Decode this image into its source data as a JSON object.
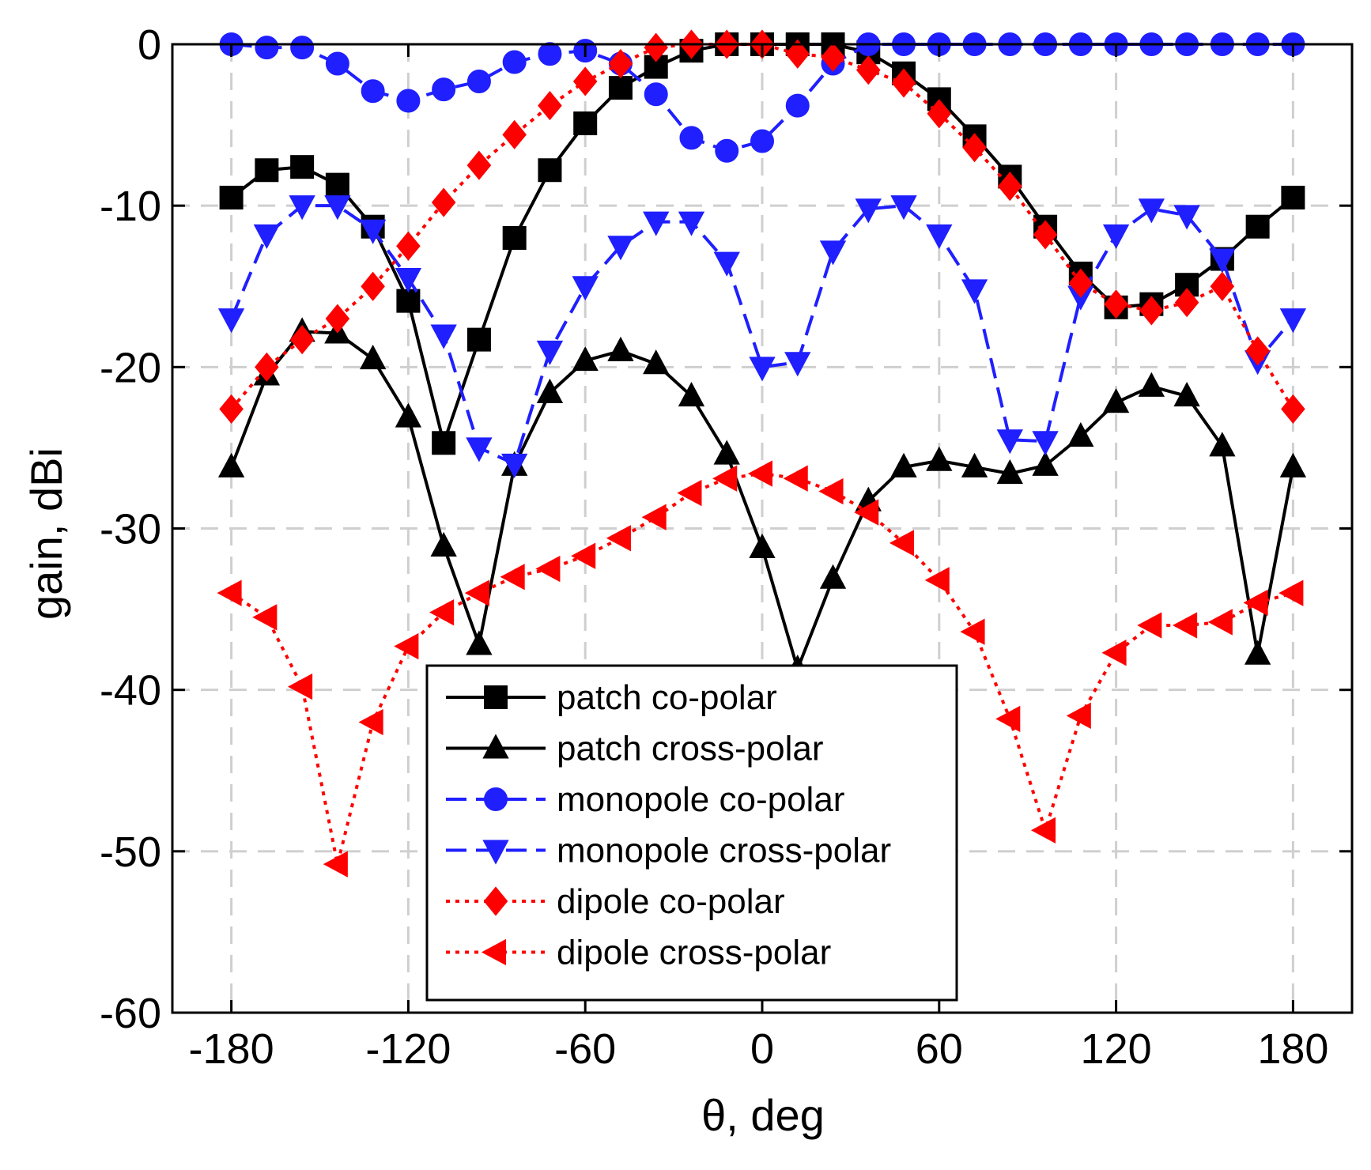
{
  "chart_data": {
    "type": "line",
    "title": "",
    "xlabel": "θ, deg",
    "ylabel": "gain, dBi",
    "xlim": [
      -200,
      200
    ],
    "ylim": [
      -60,
      0
    ],
    "xticks": [
      -180,
      -120,
      -60,
      0,
      60,
      120,
      180
    ],
    "yticks": [
      0,
      -10,
      -20,
      -30,
      -40,
      -50,
      -60
    ],
    "xtick_labels": [
      "-180",
      "-120",
      "-60",
      "0",
      "60",
      "120",
      "180"
    ],
    "ytick_labels": [
      "0",
      "-10",
      "-20",
      "-30",
      "-40",
      "-50",
      "-60"
    ],
    "grid": true,
    "legend_position": "bottom-center",
    "x": [
      -180,
      -168,
      -156,
      -144,
      -132,
      -120,
      -108,
      -96,
      -84,
      -72,
      -60,
      -48,
      -36,
      -24,
      -12,
      0,
      12,
      24,
      36,
      48,
      60,
      72,
      84,
      96,
      108,
      120,
      132,
      144,
      156,
      168,
      180
    ],
    "series": [
      {
        "name": "patch co-polar",
        "color": "#000000",
        "dash": "solid",
        "marker": "square",
        "values": [
          -9.5,
          -7.8,
          -7.6,
          -8.7,
          -11.3,
          -15.9,
          -24.7,
          -18.3,
          -12.0,
          -7.8,
          -4.9,
          -2.7,
          -1.4,
          -0.4,
          0,
          0,
          0,
          0,
          -0.5,
          -1.8,
          -3.4,
          -5.7,
          -8.2,
          -11.3,
          -14.2,
          -16.3,
          -16.1,
          -14.9,
          -13.3,
          -11.3,
          -9.5
        ]
      },
      {
        "name": "patch cross-polar",
        "color": "#000000",
        "dash": "solid",
        "marker": "triangle-up",
        "values": [
          -26.2,
          -20.5,
          -17.8,
          -17.9,
          -19.5,
          -23.1,
          -31.1,
          -37.2,
          -26.1,
          -21.6,
          -19.6,
          -19.0,
          -19.8,
          -21.8,
          -25.4,
          -31.2,
          -38.7,
          -33.1,
          -28.3,
          -26.2,
          -25.8,
          -26.2,
          -26.6,
          -26.1,
          -24.3,
          -22.2,
          -21.2,
          -21.8,
          -24.9,
          -37.8,
          -26.2
        ]
      },
      {
        "name": "monopole co-polar",
        "color": "#1f1fff",
        "dash": "dashed",
        "marker": "circle",
        "values": [
          0,
          -0.2,
          -0.2,
          -1.2,
          -2.9,
          -3.5,
          -2.8,
          -2.3,
          -1.1,
          -0.6,
          -0.4,
          -1.2,
          -3.1,
          -5.8,
          -6.6,
          -6.0,
          -3.8,
          -1.2,
          0,
          0,
          0,
          0,
          0,
          0,
          0,
          0,
          0,
          0,
          0,
          0,
          0
        ]
      },
      {
        "name": "monopole cross-polar",
        "color": "#1f1fff",
        "dash": "dashed",
        "marker": "triangle-down",
        "values": [
          -17.0,
          -11.8,
          -10.0,
          -10.0,
          -11.5,
          -14.5,
          -18.0,
          -25.0,
          -26.0,
          -19.0,
          -15.0,
          -12.5,
          -11.0,
          -11.0,
          -13.5,
          -20.0,
          -19.7,
          -12.8,
          -10.2,
          -10.0,
          -11.8,
          -15.2,
          -24.5,
          -24.6,
          -15.6,
          -11.8,
          -10.2,
          -10.6,
          -13.3,
          -19.6,
          -17.0
        ]
      },
      {
        "name": "dipole co-polar",
        "color": "#ff0000",
        "dash": "dotted",
        "marker": "diamond",
        "values": [
          -22.6,
          -20.0,
          -18.3,
          -17.0,
          -15.0,
          -12.5,
          -9.8,
          -7.5,
          -5.6,
          -3.8,
          -2.3,
          -1.2,
          -0.2,
          0,
          0,
          0,
          -0.6,
          -0.8,
          -1.6,
          -2.4,
          -4.3,
          -6.4,
          -8.8,
          -11.8,
          -14.8,
          -16.1,
          -16.5,
          -16.0,
          -15.0,
          -19.0,
          -22.6
        ]
      },
      {
        "name": "dipole cross-polar",
        "color": "#ff0000",
        "dash": "dotted",
        "marker": "triangle-left",
        "values": [
          -34.0,
          -35.5,
          -39.8,
          -50.8,
          -42.0,
          -37.3,
          -35.2,
          -34.0,
          -33.0,
          -32.5,
          -31.7,
          -30.6,
          -29.3,
          -27.8,
          -26.9,
          -26.6,
          -26.9,
          -27.7,
          -29.0,
          -30.9,
          -33.2,
          -36.4,
          -41.8,
          -48.7,
          -41.6,
          -37.7,
          -36.0,
          -36.0,
          -35.8,
          -34.6,
          -34.0
        ]
      }
    ]
  }
}
